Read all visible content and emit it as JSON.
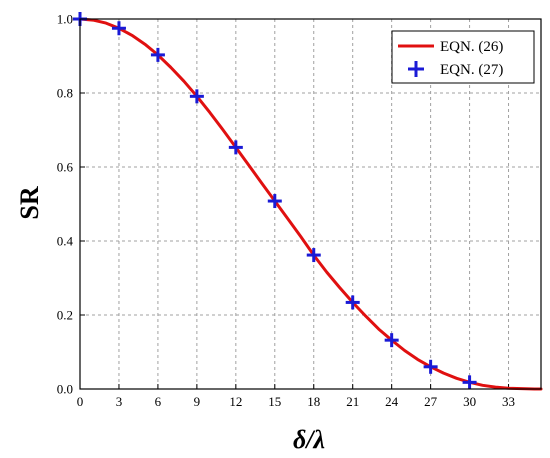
{
  "chart_data": {
    "type": "line",
    "xlabel": "δ/λ",
    "ylabel": "SR",
    "xlim": [
      0,
      35.5
    ],
    "ylim": [
      0,
      1.0
    ],
    "x_ticks": [
      0,
      3,
      6,
      9,
      12,
      15,
      18,
      21,
      24,
      27,
      30,
      33
    ],
    "y_ticks": [
      0.0,
      0.2,
      0.4,
      0.6,
      0.8,
      1.0
    ],
    "x_tick_labels": [
      "0",
      "3",
      "6",
      "9",
      "12",
      "15",
      "18",
      "21",
      "24",
      "27",
      "30",
      "33"
    ],
    "y_tick_labels": [
      "0.0",
      "0.2",
      "0.4",
      "0.6",
      "0.8",
      "1.0"
    ],
    "grid": true,
    "legend_position": "top-right",
    "series": [
      {
        "name": "EQN. (26)",
        "style": "line",
        "color": "#e01010",
        "x": [
          0,
          1,
          2,
          3,
          4,
          5,
          6,
          7,
          8,
          9,
          10,
          11,
          12,
          13,
          14,
          15,
          16,
          17,
          18,
          19,
          20,
          21,
          22,
          23,
          24,
          25,
          26,
          27,
          28,
          29,
          30,
          31,
          32,
          33,
          34,
          35,
          35.5
        ],
        "y": [
          1.0,
          0.997,
          0.989,
          0.975,
          0.956,
          0.932,
          0.903,
          0.869,
          0.832,
          0.791,
          0.747,
          0.701,
          0.653,
          0.605,
          0.556,
          0.508,
          0.46,
          0.412,
          0.362,
          0.316,
          0.274,
          0.234,
          0.197,
          0.162,
          0.132,
          0.104,
          0.08,
          0.06,
          0.043,
          0.029,
          0.018,
          0.01,
          0.005,
          0.002,
          0.001,
          0.0,
          0.0
        ]
      },
      {
        "name": "EQN. (27)",
        "style": "markers",
        "marker": "plus",
        "color": "#1a1ad6",
        "x": [
          0,
          3,
          6,
          9,
          12,
          15,
          18,
          21,
          24,
          27,
          30
        ],
        "y": [
          1.0,
          0.975,
          0.903,
          0.791,
          0.653,
          0.508,
          0.362,
          0.234,
          0.132,
          0.06,
          0.018
        ]
      }
    ]
  }
}
